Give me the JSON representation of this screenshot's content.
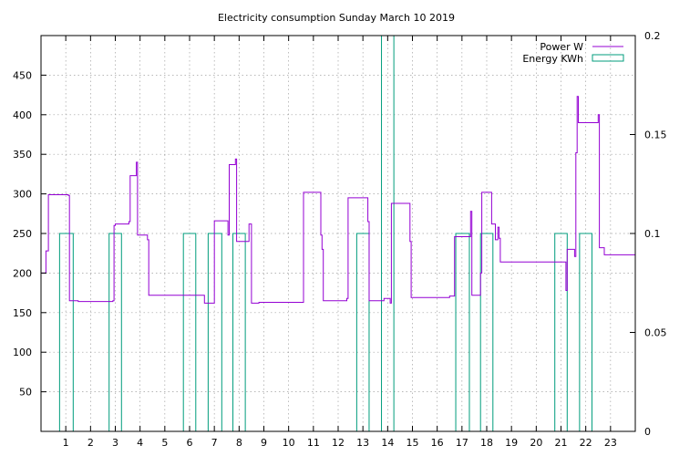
{
  "chart_data": {
    "type": "line",
    "title": "Electricity consumption Sunday March 10 2019",
    "xlabel": "",
    "ylabel": "",
    "xlim": [
      0,
      24
    ],
    "ylim": [
      0,
      500
    ],
    "y2lim": [
      0,
      0.2
    ],
    "x_ticks": [
      1,
      2,
      3,
      4,
      5,
      6,
      7,
      8,
      9,
      10,
      11,
      12,
      13,
      14,
      15,
      16,
      17,
      18,
      19,
      20,
      21,
      22,
      23
    ],
    "y_ticks": [
      50,
      100,
      150,
      200,
      250,
      300,
      350,
      400,
      450
    ],
    "y2_ticks": [
      0,
      0.05,
      0.1,
      0.15,
      0.2
    ],
    "grid": true,
    "legend_position": "top-right",
    "series": [
      {
        "name": "Power W",
        "color": "#9400d3",
        "axis": "y",
        "points": [
          [
            0.0,
            200
          ],
          [
            0.2,
            200
          ],
          [
            0.2,
            228
          ],
          [
            0.3,
            228
          ],
          [
            0.3,
            299
          ],
          [
            1.1,
            299
          ],
          [
            1.1,
            298
          ],
          [
            1.15,
            298
          ],
          [
            1.15,
            165
          ],
          [
            1.5,
            165
          ],
          [
            1.5,
            164
          ],
          [
            2.9,
            164
          ],
          [
            2.9,
            165
          ],
          [
            2.95,
            165
          ],
          [
            2.95,
            260
          ],
          [
            3.0,
            260
          ],
          [
            3.0,
            262
          ],
          [
            3.55,
            262
          ],
          [
            3.55,
            265
          ],
          [
            3.6,
            265
          ],
          [
            3.6,
            323
          ],
          [
            3.85,
            323
          ],
          [
            3.85,
            340
          ],
          [
            3.9,
            340
          ],
          [
            3.9,
            248
          ],
          [
            4.3,
            248
          ],
          [
            4.3,
            242
          ],
          [
            4.35,
            242
          ],
          [
            4.35,
            172
          ],
          [
            6.6,
            172
          ],
          [
            6.6,
            162
          ],
          [
            7.0,
            162
          ],
          [
            7.0,
            266
          ],
          [
            7.55,
            266
          ],
          [
            7.55,
            248
          ],
          [
            7.6,
            248
          ],
          [
            7.6,
            337
          ],
          [
            7.85,
            337
          ],
          [
            7.85,
            344
          ],
          [
            7.9,
            344
          ],
          [
            7.9,
            240
          ],
          [
            8.4,
            240
          ],
          [
            8.4,
            262
          ],
          [
            8.5,
            262
          ],
          [
            8.5,
            162
          ],
          [
            8.8,
            162
          ],
          [
            8.8,
            163
          ],
          [
            10.6,
            163
          ],
          [
            10.6,
            302
          ],
          [
            11.3,
            302
          ],
          [
            11.3,
            248
          ],
          [
            11.35,
            248
          ],
          [
            11.35,
            230
          ],
          [
            11.4,
            230
          ],
          [
            11.4,
            165
          ],
          [
            12.35,
            165
          ],
          [
            12.35,
            168
          ],
          [
            12.4,
            168
          ],
          [
            12.4,
            295
          ],
          [
            13.2,
            295
          ],
          [
            13.2,
            265
          ],
          [
            13.25,
            265
          ],
          [
            13.25,
            165
          ],
          [
            13.85,
            165
          ],
          [
            13.85,
            168
          ],
          [
            14.1,
            168
          ],
          [
            14.1,
            162
          ],
          [
            14.15,
            162
          ],
          [
            14.15,
            288
          ],
          [
            14.9,
            288
          ],
          [
            14.9,
            240
          ],
          [
            14.95,
            240
          ],
          [
            14.95,
            169
          ],
          [
            16.5,
            169
          ],
          [
            16.5,
            171
          ],
          [
            16.7,
            171
          ],
          [
            16.7,
            246
          ],
          [
            17.35,
            246
          ],
          [
            17.35,
            278
          ],
          [
            17.4,
            278
          ],
          [
            17.4,
            172
          ],
          [
            17.75,
            172
          ],
          [
            17.75,
            200
          ],
          [
            17.8,
            200
          ],
          [
            17.8,
            302
          ],
          [
            18.2,
            302
          ],
          [
            18.2,
            262
          ],
          [
            18.35,
            262
          ],
          [
            18.35,
            242
          ],
          [
            18.45,
            242
          ],
          [
            18.45,
            258
          ],
          [
            18.5,
            258
          ],
          [
            18.5,
            244
          ],
          [
            18.55,
            244
          ],
          [
            18.55,
            214
          ],
          [
            21.2,
            214
          ],
          [
            21.2,
            178
          ],
          [
            21.25,
            178
          ],
          [
            21.25,
            230
          ],
          [
            21.55,
            230
          ],
          [
            21.55,
            221
          ],
          [
            21.6,
            221
          ],
          [
            21.6,
            352
          ],
          [
            21.65,
            352
          ],
          [
            21.65,
            423
          ],
          [
            21.7,
            423
          ],
          [
            21.7,
            390
          ],
          [
            22.5,
            390
          ],
          [
            22.5,
            400
          ],
          [
            22.55,
            400
          ],
          [
            22.55,
            232
          ],
          [
            22.75,
            232
          ],
          [
            22.75,
            223
          ],
          [
            24.0,
            223
          ]
        ]
      },
      {
        "name": "Energy KWh",
        "color": "#009c7c",
        "axis": "y2",
        "bars": [
          [
            0.75,
            1.3,
            0.1
          ],
          [
            2.75,
            3.25,
            0.1
          ],
          [
            5.75,
            6.25,
            0.1
          ],
          [
            6.75,
            7.3,
            0.1
          ],
          [
            7.75,
            8.25,
            0.1
          ],
          [
            12.75,
            13.25,
            0.1
          ],
          [
            13.75,
            14.25,
            0.2
          ],
          [
            16.75,
            17.3,
            0.1
          ],
          [
            17.75,
            18.25,
            0.1
          ],
          [
            20.75,
            21.25,
            0.1
          ],
          [
            21.75,
            22.25,
            0.1
          ]
        ]
      }
    ]
  }
}
